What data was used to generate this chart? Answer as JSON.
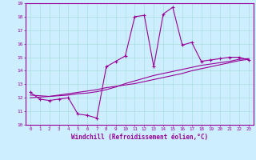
{
  "xlabel": "Windchill (Refroidissement éolien,°C)",
  "bg_color": "#cceeff",
  "line_color": "#990099",
  "grid_color": "#aadddd",
  "xlim": [
    -0.5,
    23.5
  ],
  "ylim": [
    10,
    19
  ],
  "yticks": [
    10,
    11,
    12,
    13,
    14,
    15,
    16,
    17,
    18,
    19
  ],
  "xticks": [
    0,
    1,
    2,
    3,
    4,
    5,
    6,
    7,
    8,
    9,
    10,
    11,
    12,
    13,
    14,
    15,
    16,
    17,
    18,
    19,
    20,
    21,
    22,
    23
  ],
  "series1_x": [
    0,
    1,
    2,
    3,
    4,
    5,
    6,
    7,
    8,
    9,
    10,
    11,
    12,
    13,
    14,
    15,
    16,
    17,
    18,
    19,
    20,
    21,
    22,
    23
  ],
  "series1_y": [
    12.4,
    11.9,
    11.8,
    11.9,
    12.0,
    10.8,
    10.7,
    10.5,
    14.3,
    14.7,
    15.1,
    18.0,
    18.1,
    14.3,
    18.2,
    18.7,
    15.9,
    16.1,
    14.7,
    14.8,
    14.9,
    15.0,
    15.0,
    14.8
  ],
  "series2_x": [
    0,
    1,
    2,
    3,
    4,
    5,
    6,
    7,
    8,
    9,
    10,
    11,
    12,
    13,
    14,
    15,
    16,
    17,
    18,
    19,
    20,
    21,
    22,
    23
  ],
  "series2_y": [
    12.0,
    12.05,
    12.1,
    12.2,
    12.3,
    12.4,
    12.5,
    12.6,
    12.75,
    12.85,
    12.95,
    13.05,
    13.2,
    13.35,
    13.5,
    13.65,
    13.8,
    14.0,
    14.15,
    14.3,
    14.45,
    14.6,
    14.75,
    14.85
  ],
  "series3_x": [
    0,
    1,
    2,
    3,
    4,
    5,
    6,
    7,
    8,
    9,
    10,
    11,
    12,
    13,
    14,
    15,
    16,
    17,
    18,
    19,
    20,
    21,
    22,
    23
  ],
  "series3_y": [
    12.2,
    12.15,
    12.1,
    12.15,
    12.2,
    12.3,
    12.35,
    12.45,
    12.6,
    12.8,
    13.05,
    13.25,
    13.45,
    13.65,
    13.8,
    13.95,
    14.1,
    14.25,
    14.4,
    14.5,
    14.6,
    14.7,
    14.85,
    14.9
  ]
}
